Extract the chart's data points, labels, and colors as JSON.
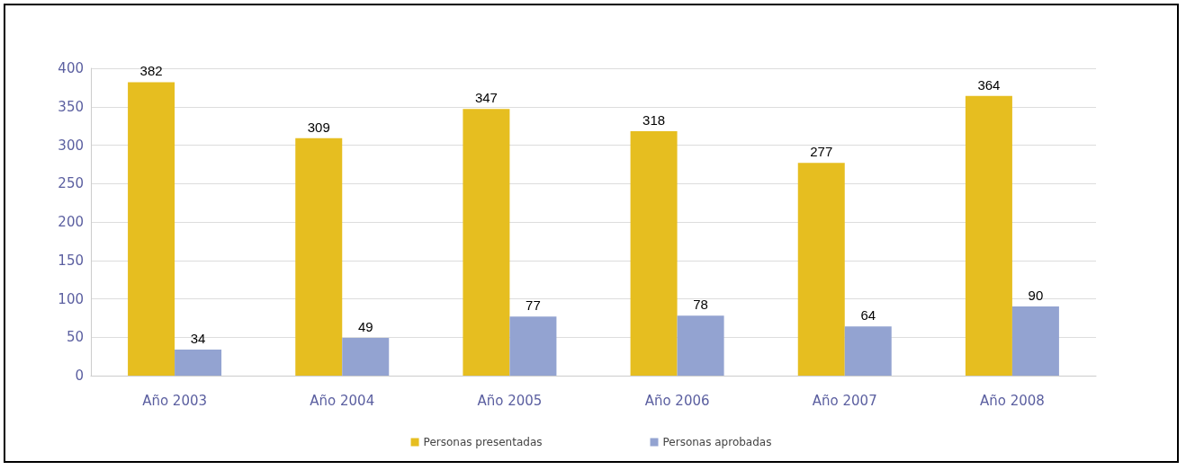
{
  "chart_data": {
    "type": "bar",
    "categories": [
      "Año 2003",
      "Año 2004",
      "Año 2005",
      "Año 2006",
      "Año 2007",
      "Año 2008"
    ],
    "series": [
      {
        "name": "Personas presentadas",
        "color": "#e6be20",
        "values": [
          382,
          309,
          347,
          318,
          277,
          364
        ]
      },
      {
        "name": "Personas aprobadas",
        "color": "#93a3d1",
        "values": [
          34,
          49,
          77,
          78,
          64,
          90
        ]
      }
    ],
    "ylim": [
      0,
      400
    ],
    "yticks": [
      0,
      50,
      100,
      150,
      200,
      250,
      300,
      350,
      400
    ],
    "grid": "y",
    "legend": "bottom",
    "data_labels": true
  }
}
